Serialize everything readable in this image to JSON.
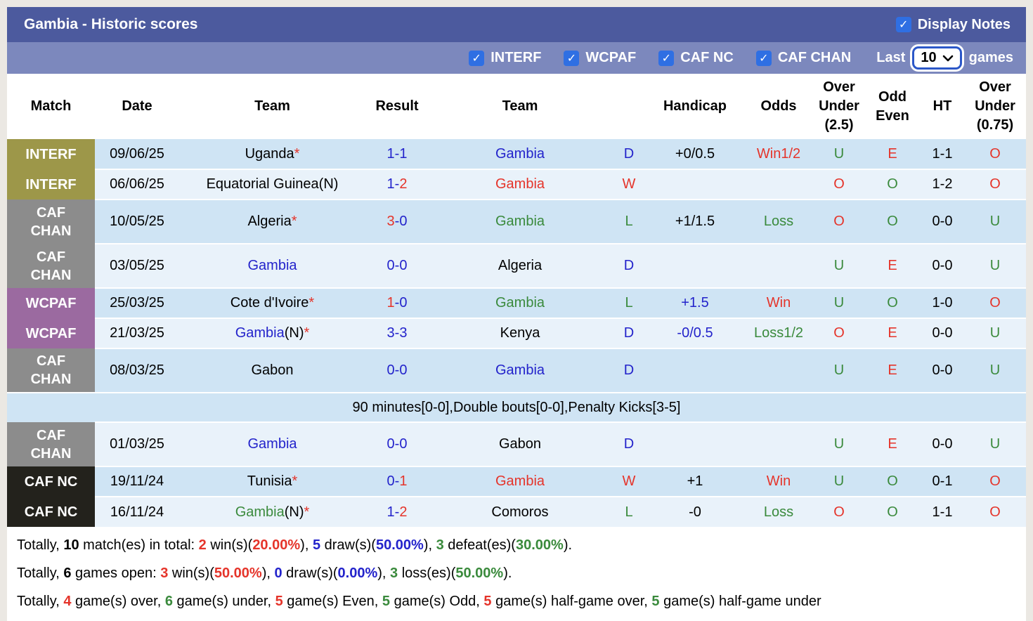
{
  "palette": {
    "blue": "#2323cb",
    "red": "#e5342a",
    "green": "#3a8a3c",
    "black": "#000000"
  },
  "theme": {
    "title_bar_bg": "#4c5a9e",
    "filter_bar_bg": "#7c88bd",
    "checkbox_bg": "#2f6fe3",
    "row_dark_bg": "#cfe4f4",
    "row_light_bg": "#e9f2fa"
  },
  "title_bar": {
    "title": "Gambia - Historic scores",
    "display_notes_label": "Display Notes",
    "display_notes_checked": true
  },
  "filter_bar": {
    "checkboxes": [
      {
        "label": "INTERF",
        "checked": true
      },
      {
        "label": "WCPAF",
        "checked": true
      },
      {
        "label": "CAF NC",
        "checked": true
      },
      {
        "label": "CAF CHAN",
        "checked": true
      }
    ],
    "last_label": "Last",
    "selected_games": "10",
    "games_label": "games"
  },
  "badge_colors": {
    "INTERF": "#9d9749",
    "CAF CHAN": "#8c8c8c",
    "WCPAF": "#9b6aa0",
    "CAF NC": "#23221c"
  },
  "table": {
    "headers": [
      "Match",
      "Date",
      "Team",
      "Result",
      "Team",
      "",
      "Handicap",
      "Odds",
      "Over\nUnder\n(2.5)",
      "Odd\nEven",
      "HT",
      "Over\nUnder\n(0.75)"
    ],
    "rows": [
      {
        "league": "INTERF",
        "league_display": "INTERF",
        "tall": false,
        "shade": "dark",
        "date": "09/06/25",
        "home": [
          {
            "t": "Uganda",
            "c": "black"
          },
          {
            "t": "*",
            "c": "red"
          }
        ],
        "result": [
          {
            "t": "1-1",
            "c": "blue"
          }
        ],
        "away": [
          {
            "t": "Gambia",
            "c": "blue"
          }
        ],
        "dwl": {
          "t": "D",
          "c": "blue"
        },
        "handicap": {
          "t": "+0/0.5",
          "c": "black"
        },
        "odds": {
          "t": "Win1/2",
          "c": "red"
        },
        "ou25": {
          "t": "U",
          "c": "green"
        },
        "oddeven": {
          "t": "E",
          "c": "red"
        },
        "ht": {
          "t": "1-1",
          "c": "black"
        },
        "ou075": {
          "t": "O",
          "c": "red"
        }
      },
      {
        "league": "INTERF",
        "league_display": "INTERF",
        "tall": false,
        "shade": "light",
        "date": "06/06/25",
        "home": [
          {
            "t": "Equatorial Guinea(N)",
            "c": "black"
          }
        ],
        "result": [
          {
            "t": "1-",
            "c": "blue"
          },
          {
            "t": "2",
            "c": "red"
          }
        ],
        "away": [
          {
            "t": "Gambia",
            "c": "red"
          }
        ],
        "dwl": {
          "t": "W",
          "c": "red"
        },
        "handicap": {
          "t": "",
          "c": "black"
        },
        "odds": {
          "t": "",
          "c": "black"
        },
        "ou25": {
          "t": "O",
          "c": "red"
        },
        "oddeven": {
          "t": "O",
          "c": "green"
        },
        "ht": {
          "t": "1-2",
          "c": "black"
        },
        "ou075": {
          "t": "O",
          "c": "red"
        }
      },
      {
        "league": "CAF CHAN",
        "league_display": "CAF\nCHAN",
        "tall": true,
        "shade": "dark",
        "date": "10/05/25",
        "home": [
          {
            "t": "Algeria",
            "c": "black"
          },
          {
            "t": "*",
            "c": "red"
          }
        ],
        "result": [
          {
            "t": "3",
            "c": "red"
          },
          {
            "t": "-0",
            "c": "blue"
          }
        ],
        "away": [
          {
            "t": "Gambia",
            "c": "green"
          }
        ],
        "dwl": {
          "t": "L",
          "c": "green"
        },
        "handicap": {
          "t": "+1/1.5",
          "c": "black"
        },
        "odds": {
          "t": "Loss",
          "c": "green"
        },
        "ou25": {
          "t": "O",
          "c": "red"
        },
        "oddeven": {
          "t": "O",
          "c": "green"
        },
        "ht": {
          "t": "0-0",
          "c": "black"
        },
        "ou075": {
          "t": "U",
          "c": "green"
        }
      },
      {
        "league": "CAF CHAN",
        "league_display": "CAF\nCHAN",
        "tall": true,
        "shade": "light",
        "date": "03/05/25",
        "home": [
          {
            "t": "Gambia",
            "c": "blue"
          }
        ],
        "result": [
          {
            "t": "0-0",
            "c": "blue"
          }
        ],
        "away": [
          {
            "t": "Algeria",
            "c": "black"
          }
        ],
        "dwl": {
          "t": "D",
          "c": "blue"
        },
        "handicap": {
          "t": "",
          "c": "black"
        },
        "odds": {
          "t": "",
          "c": "black"
        },
        "ou25": {
          "t": "U",
          "c": "green"
        },
        "oddeven": {
          "t": "E",
          "c": "red"
        },
        "ht": {
          "t": "0-0",
          "c": "black"
        },
        "ou075": {
          "t": "U",
          "c": "green"
        }
      },
      {
        "league": "WCPAF",
        "league_display": "WCPAF",
        "tall": false,
        "shade": "dark",
        "date": "25/03/25",
        "home": [
          {
            "t": "Cote d'Ivoire",
            "c": "black"
          },
          {
            "t": "*",
            "c": "red"
          }
        ],
        "result": [
          {
            "t": "1",
            "c": "red"
          },
          {
            "t": "-0",
            "c": "blue"
          }
        ],
        "away": [
          {
            "t": "Gambia",
            "c": "green"
          }
        ],
        "dwl": {
          "t": "L",
          "c": "green"
        },
        "handicap": {
          "t": "+1.5",
          "c": "blue"
        },
        "odds": {
          "t": "Win",
          "c": "red"
        },
        "ou25": {
          "t": "U",
          "c": "green"
        },
        "oddeven": {
          "t": "O",
          "c": "green"
        },
        "ht": {
          "t": "1-0",
          "c": "black"
        },
        "ou075": {
          "t": "O",
          "c": "red"
        }
      },
      {
        "league": "WCPAF",
        "league_display": "WCPAF",
        "tall": false,
        "shade": "light",
        "date": "21/03/25",
        "home": [
          {
            "t": "Gambia",
            "c": "blue"
          },
          {
            "t": "(N)",
            "c": "black"
          },
          {
            "t": "*",
            "c": "red"
          }
        ],
        "result": [
          {
            "t": "3-3",
            "c": "blue"
          }
        ],
        "away": [
          {
            "t": "Kenya",
            "c": "black"
          }
        ],
        "dwl": {
          "t": "D",
          "c": "blue"
        },
        "handicap": {
          "t": "-0/0.5",
          "c": "blue"
        },
        "odds": {
          "t": "Loss1/2",
          "c": "green"
        },
        "ou25": {
          "t": "O",
          "c": "red"
        },
        "oddeven": {
          "t": "E",
          "c": "red"
        },
        "ht": {
          "t": "0-0",
          "c": "black"
        },
        "ou075": {
          "t": "U",
          "c": "green"
        }
      },
      {
        "league": "CAF CHAN",
        "league_display": "CAF\nCHAN",
        "tall": true,
        "shade": "dark",
        "date": "08/03/25",
        "home": [
          {
            "t": "Gabon",
            "c": "black"
          }
        ],
        "result": [
          {
            "t": "0-0",
            "c": "blue"
          }
        ],
        "away": [
          {
            "t": "Gambia",
            "c": "blue"
          }
        ],
        "dwl": {
          "t": "D",
          "c": "blue"
        },
        "handicap": {
          "t": "",
          "c": "black"
        },
        "odds": {
          "t": "",
          "c": "black"
        },
        "ou25": {
          "t": "U",
          "c": "green"
        },
        "oddeven": {
          "t": "E",
          "c": "red"
        },
        "ht": {
          "t": "0-0",
          "c": "black"
        },
        "ou075": {
          "t": "U",
          "c": "green"
        }
      },
      {
        "type": "note",
        "shade": "dark",
        "text": "90 minutes[0-0],Double bouts[0-0],Penalty Kicks[3-5]"
      },
      {
        "league": "CAF CHAN",
        "league_display": "CAF\nCHAN",
        "tall": true,
        "shade": "light",
        "date": "01/03/25",
        "home": [
          {
            "t": "Gambia",
            "c": "blue"
          }
        ],
        "result": [
          {
            "t": "0-0",
            "c": "blue"
          }
        ],
        "away": [
          {
            "t": "Gabon",
            "c": "black"
          }
        ],
        "dwl": {
          "t": "D",
          "c": "blue"
        },
        "handicap": {
          "t": "",
          "c": "black"
        },
        "odds": {
          "t": "",
          "c": "black"
        },
        "ou25": {
          "t": "U",
          "c": "green"
        },
        "oddeven": {
          "t": "E",
          "c": "red"
        },
        "ht": {
          "t": "0-0",
          "c": "black"
        },
        "ou075": {
          "t": "U",
          "c": "green"
        }
      },
      {
        "league": "CAF NC",
        "league_display": "CAF NC",
        "tall": false,
        "shade": "dark",
        "date": "19/11/24",
        "home": [
          {
            "t": "Tunisia",
            "c": "black"
          },
          {
            "t": "*",
            "c": "red"
          }
        ],
        "result": [
          {
            "t": "0-",
            "c": "blue"
          },
          {
            "t": "1",
            "c": "red"
          }
        ],
        "away": [
          {
            "t": "Gambia",
            "c": "red"
          }
        ],
        "dwl": {
          "t": "W",
          "c": "red"
        },
        "handicap": {
          "t": "+1",
          "c": "black"
        },
        "odds": {
          "t": "Win",
          "c": "red"
        },
        "ou25": {
          "t": "U",
          "c": "green"
        },
        "oddeven": {
          "t": "O",
          "c": "green"
        },
        "ht": {
          "t": "0-1",
          "c": "black"
        },
        "ou075": {
          "t": "O",
          "c": "red"
        }
      },
      {
        "league": "CAF NC",
        "league_display": "CAF NC",
        "tall": false,
        "shade": "light",
        "date": "16/11/24",
        "home": [
          {
            "t": "Gambia",
            "c": "green"
          },
          {
            "t": "(N)",
            "c": "black"
          },
          {
            "t": "*",
            "c": "red"
          }
        ],
        "result": [
          {
            "t": "1-",
            "c": "blue"
          },
          {
            "t": "2",
            "c": "red"
          }
        ],
        "away": [
          {
            "t": "Comoros",
            "c": "black"
          }
        ],
        "dwl": {
          "t": "L",
          "c": "green"
        },
        "handicap": {
          "t": "-0",
          "c": "black"
        },
        "odds": {
          "t": "Loss",
          "c": "green"
        },
        "ou25": {
          "t": "O",
          "c": "red"
        },
        "oddeven": {
          "t": "O",
          "c": "green"
        },
        "ht": {
          "t": "1-1",
          "c": "black"
        },
        "ou075": {
          "t": "O",
          "c": "red"
        }
      }
    ]
  },
  "footer": {
    "lines": [
      [
        {
          "t": "Totally, "
        },
        {
          "t": "10",
          "b": 1
        },
        {
          "t": " match(es) in total: "
        },
        {
          "t": "2",
          "c": "red",
          "b": 1
        },
        {
          "t": " win(s)("
        },
        {
          "t": "20.00%",
          "c": "red",
          "b": 1
        },
        {
          "t": "), "
        },
        {
          "t": "5",
          "c": "blue",
          "b": 1
        },
        {
          "t": " draw(s)("
        },
        {
          "t": "50.00%",
          "c": "blue",
          "b": 1
        },
        {
          "t": "), "
        },
        {
          "t": "3",
          "c": "green",
          "b": 1
        },
        {
          "t": " defeat(es)("
        },
        {
          "t": "30.00%",
          "c": "green",
          "b": 1
        },
        {
          "t": ")."
        }
      ],
      [
        {
          "t": "Totally, "
        },
        {
          "t": "6",
          "b": 1
        },
        {
          "t": " games open: "
        },
        {
          "t": "3",
          "c": "red",
          "b": 1
        },
        {
          "t": " win(s)("
        },
        {
          "t": "50.00%",
          "c": "red",
          "b": 1
        },
        {
          "t": "), "
        },
        {
          "t": "0",
          "c": "blue",
          "b": 1
        },
        {
          "t": " draw(s)("
        },
        {
          "t": "0.00%",
          "c": "blue",
          "b": 1
        },
        {
          "t": "), "
        },
        {
          "t": "3",
          "c": "green",
          "b": 1
        },
        {
          "t": " loss(es)("
        },
        {
          "t": "50.00%",
          "c": "green",
          "b": 1
        },
        {
          "t": ")."
        }
      ],
      [
        {
          "t": "Totally, "
        },
        {
          "t": "4",
          "c": "red",
          "b": 1
        },
        {
          "t": " game(s) over, "
        },
        {
          "t": "6",
          "c": "green",
          "b": 1
        },
        {
          "t": " game(s) under, "
        },
        {
          "t": "5",
          "c": "red",
          "b": 1
        },
        {
          "t": " game(s) Even, "
        },
        {
          "t": "5",
          "c": "green",
          "b": 1
        },
        {
          "t": " game(s) Odd, "
        },
        {
          "t": "5",
          "c": "red",
          "b": 1
        },
        {
          "t": " game(s) half-game over, "
        },
        {
          "t": "5",
          "c": "green",
          "b": 1
        },
        {
          "t": " game(s) half-game under"
        }
      ]
    ]
  }
}
